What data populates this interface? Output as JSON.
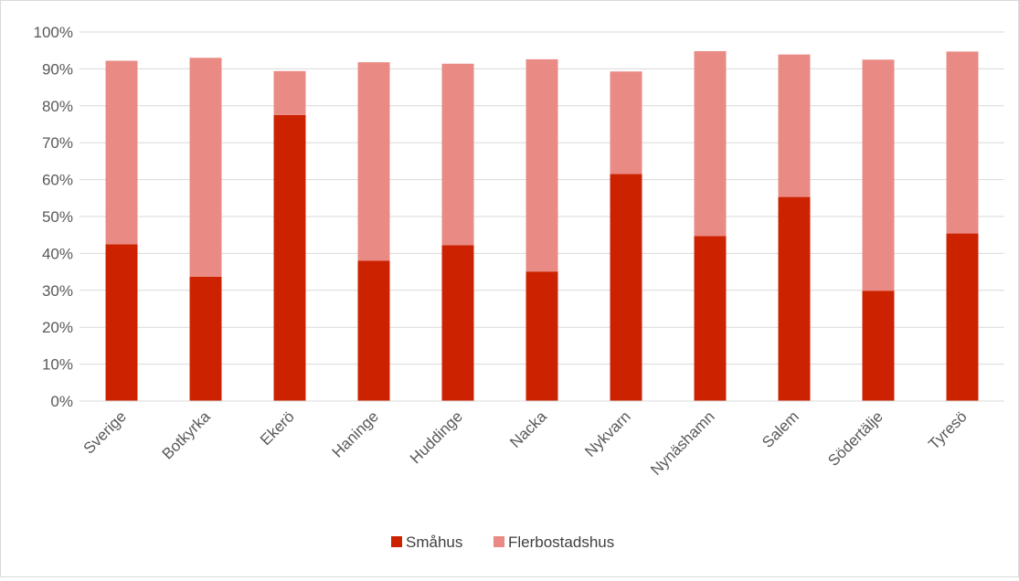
{
  "chart_data": {
    "type": "bar",
    "stacked": true,
    "categories": [
      "Sverige",
      "Botkyrka",
      "Ekerö",
      "Haninge",
      "Huddinge",
      "Nacka",
      "Nykvarn",
      "Nynäshamn",
      "Salem",
      "Södertälje",
      "Tyresö"
    ],
    "series": [
      {
        "name": "Småhus",
        "color": "#cc2200",
        "values": [
          42.5,
          33.7,
          77.5,
          38.0,
          42.2,
          35.1,
          61.5,
          44.7,
          55.3,
          29.9,
          45.4
        ]
      },
      {
        "name": "Flerbostadshus",
        "color": "#ea8a84",
        "values": [
          49.7,
          59.3,
          11.9,
          53.8,
          49.2,
          57.5,
          27.8,
          50.1,
          38.6,
          62.6,
          49.3
        ]
      }
    ],
    "ylim": [
      0,
      100
    ],
    "yticks": [
      "0%",
      "10%",
      "20%",
      "30%",
      "40%",
      "50%",
      "60%",
      "70%",
      "80%",
      "90%",
      "100%"
    ],
    "grid": true,
    "legend_position": "bottom",
    "title": "",
    "xlabel": "",
    "ylabel": ""
  }
}
